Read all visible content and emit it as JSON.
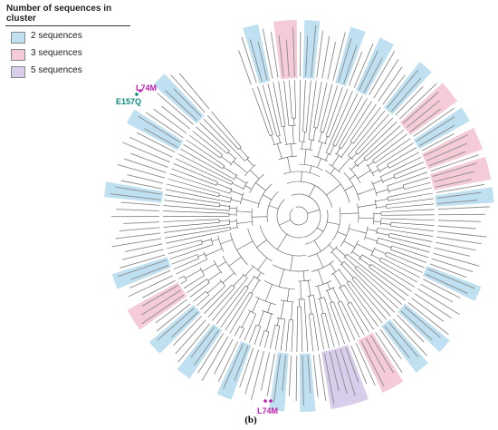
{
  "legend": {
    "title": "Number of sequences in cluster",
    "items": [
      {
        "label": "2 sequences",
        "color": "#bfe0f0"
      },
      {
        "label": "3 sequences",
        "color": "#f4cbd6"
      },
      {
        "label": "5 sequences",
        "color": "#d9cdec"
      }
    ]
  },
  "annotations": {
    "top_mutation_1": "L74M",
    "top_mutation_2": "E157Q",
    "bottom_mutation": "L74M",
    "color_l74m": "#c020b0",
    "color_e157q": "#0d8a80"
  },
  "caption": "(b)"
}
